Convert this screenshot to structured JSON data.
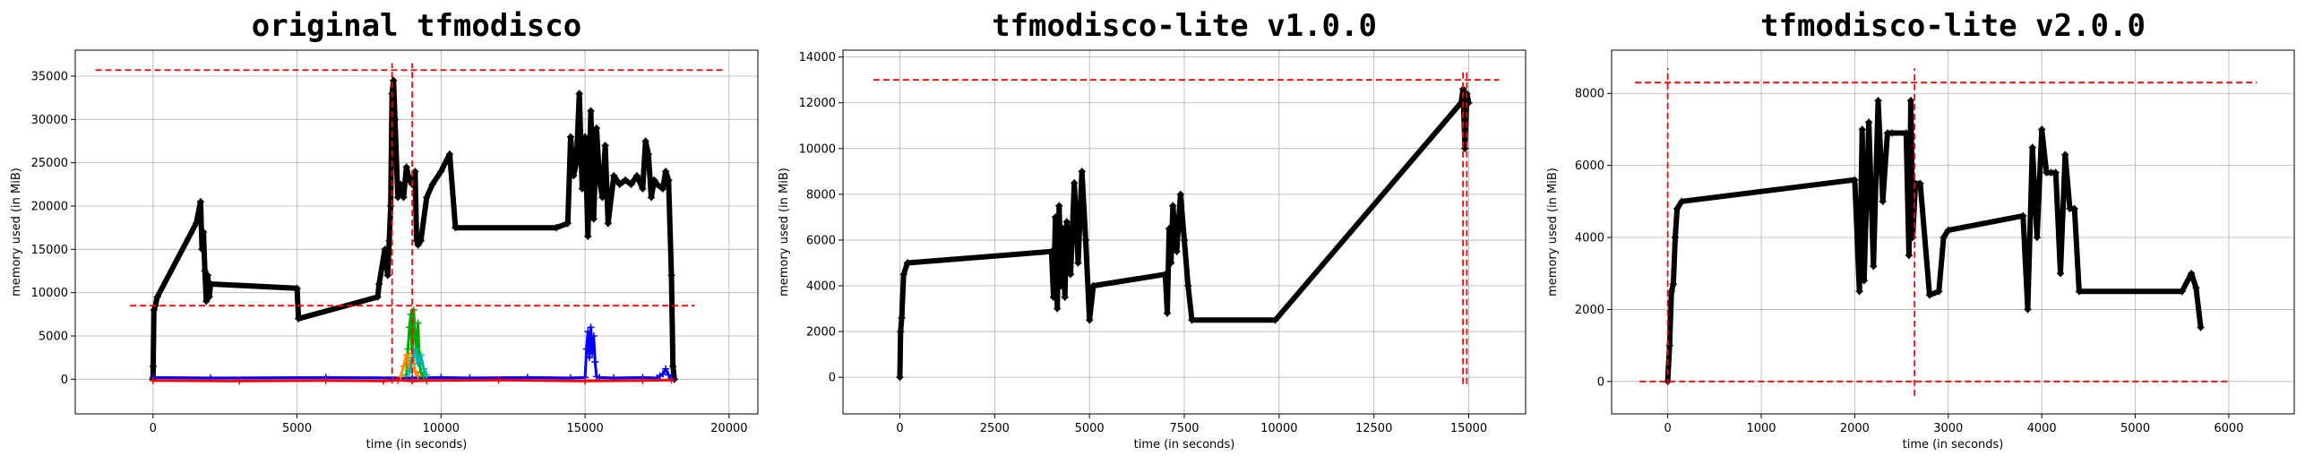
{
  "chart_data": [
    {
      "type": "line",
      "title": "original tfmodisco",
      "xlabel": "time (in seconds)",
      "ylabel": "memory used (in MiB)",
      "xlim": [
        -2700,
        21000
      ],
      "ylim": [
        -4000,
        38000
      ],
      "xticks": [
        0,
        5000,
        10000,
        15000,
        20000
      ],
      "yticks": [
        0,
        5000,
        10000,
        15000,
        20000,
        25000,
        30000,
        35000
      ],
      "grid": true,
      "series": [
        {
          "color": "#000000",
          "x": [
            0,
            5,
            30,
            80,
            150,
            1500,
            1650,
            1700,
            1750,
            1800,
            1850,
            1900,
            1950,
            2000,
            5000,
            5050,
            7800,
            7850,
            8050,
            8150,
            8200,
            8250,
            8300,
            8350,
            8400,
            8500,
            8600,
            8700,
            8800,
            8900,
            9000,
            9100,
            9150,
            9200,
            9300,
            9500,
            9700,
            10000,
            10300,
            10500,
            14000,
            14400,
            14500,
            14600,
            14700,
            14800,
            14900,
            15000,
            15100,
            15200,
            15300,
            15400,
            15500,
            15600,
            15700,
            15800,
            16000,
            16200,
            16400,
            16600,
            16800,
            17000,
            17100,
            17200,
            17300,
            17400,
            17500,
            17700,
            17800,
            17900,
            18000,
            18050,
            18100
          ],
          "y": [
            0,
            1500,
            8000,
            8500,
            9500,
            18000,
            20500,
            15000,
            17000,
            12500,
            9000,
            12000,
            9500,
            11000,
            10500,
            7000,
            9500,
            11000,
            15000,
            12000,
            16000,
            20000,
            33000,
            34500,
            30000,
            21000,
            22500,
            21000,
            24500,
            23000,
            22500,
            24000,
            16000,
            15500,
            16000,
            21000,
            22500,
            24000,
            26000,
            17500,
            17500,
            18000,
            28000,
            23500,
            25000,
            33000,
            22000,
            28000,
            16500,
            31000,
            18500,
            29000,
            23000,
            21000,
            27000,
            18000,
            23500,
            22500,
            23000,
            22500,
            23500,
            22000,
            27500,
            26000,
            21000,
            23000,
            22500,
            22000,
            24000,
            23000,
            12000,
            1500,
            0
          ]
        },
        {
          "color": "#0000ff",
          "x": [
            0,
            2000,
            6000,
            9000,
            10000,
            11000,
            13000,
            14500,
            15000,
            15050,
            15100,
            15150,
            15200,
            15250,
            15300,
            15350,
            15400,
            15500,
            16000,
            17000,
            17500,
            17600,
            17700,
            17800,
            17900,
            18000
          ],
          "y": [
            200,
            150,
            200,
            150,
            200,
            150,
            200,
            150,
            200,
            3500,
            5500,
            2500,
            6000,
            3000,
            5000,
            2000,
            300,
            200,
            150,
            200,
            150,
            400,
            600,
            1200,
            500,
            100
          ]
        },
        {
          "color": "#ff0000",
          "x": [
            0,
            3000,
            6000,
            8000,
            8500,
            9000,
            9500,
            12000,
            15000,
            17000,
            18000
          ],
          "y": [
            -150,
            -200,
            -150,
            -200,
            -100,
            -200,
            -150,
            -100,
            -200,
            -150,
            -100
          ]
        },
        {
          "color": "#00aa00",
          "x": [
            8800,
            8850,
            8900,
            8950,
            9000,
            9050,
            9100,
            9150,
            9200,
            9250,
            9300,
            9400
          ],
          "y": [
            500,
            3500,
            6000,
            7500,
            2500,
            8000,
            5000,
            3000,
            6500,
            2000,
            800,
            300
          ]
        },
        {
          "color": "#ff8c00",
          "x": [
            8600,
            8700,
            8800,
            8900,
            9000,
            9100,
            9200
          ],
          "y": [
            300,
            1500,
            2800,
            1200,
            3000,
            900,
            400
          ]
        },
        {
          "color": "#00b3b3",
          "x": [
            8900,
            9000,
            9100,
            9200,
            9300,
            9400,
            9500
          ],
          "y": [
            800,
            2200,
            3500,
            1800,
            2800,
            1200,
            500
          ]
        }
      ],
      "hlines": [
        {
          "y": 35700,
          "xmin": -2000,
          "xmax": 19800
        },
        {
          "y": 8500,
          "xmin": -800,
          "xmax": 18800
        }
      ],
      "vlines": [
        {
          "x": 8300,
          "ymin": -500,
          "ymax": 36500
        },
        {
          "x": 9000,
          "ymin": -500,
          "ymax": 36500
        }
      ]
    },
    {
      "type": "line",
      "title": "tfmodisco-lite v1.0.0",
      "xlabel": "time (in seconds)",
      "ylabel": "memory used (in MiB)",
      "xlim": [
        -1500,
        16500
      ],
      "ylim": [
        -1600,
        14300
      ],
      "xticks": [
        0,
        2500,
        5000,
        7500,
        10000,
        12500,
        15000
      ],
      "yticks": [
        0,
        2000,
        4000,
        6000,
        8000,
        10000,
        12000,
        14000
      ],
      "grid": true,
      "series": [
        {
          "color": "#000000",
          "x": [
            0,
            20,
            50,
            100,
            200,
            4000,
            4050,
            4100,
            4150,
            4200,
            4250,
            4300,
            4350,
            4400,
            4500,
            4600,
            4700,
            4800,
            4900,
            5000,
            5100,
            7000,
            7050,
            7100,
            7150,
            7200,
            7300,
            7400,
            7500,
            7600,
            7700,
            9900,
            14800,
            14850,
            14900,
            14950,
            15000
          ],
          "y": [
            0,
            2000,
            2600,
            4500,
            5000,
            5500,
            3500,
            7000,
            3000,
            7500,
            4000,
            6500,
            3500,
            6800,
            4500,
            8500,
            5000,
            9000,
            6000,
            2500,
            4000,
            4500,
            2800,
            6500,
            5000,
            7500,
            5500,
            8000,
            6000,
            4000,
            2500,
            2500,
            12000,
            12600,
            10000,
            12400,
            12000
          ]
        }
      ],
      "hlines": [
        {
          "y": 13000,
          "xmin": -700,
          "xmax": 15800
        }
      ],
      "vlines": [
        {
          "x": 14850,
          "ymin": -300,
          "ymax": 13500
        },
        {
          "x": 14950,
          "ymin": -300,
          "ymax": 13500
        }
      ]
    },
    {
      "type": "line",
      "title": "tfmodisco-lite v2.0.0",
      "xlabel": "time (in seconds)",
      "ylabel": "memory used (in MiB)",
      "xlim": [
        -600,
        6700
      ],
      "ylim": [
        -900,
        9200
      ],
      "xticks": [
        0,
        1000,
        2000,
        3000,
        4000,
        5000,
        6000
      ],
      "yticks": [
        0,
        2000,
        4000,
        6000,
        8000
      ],
      "grid": true,
      "series": [
        {
          "color": "#000000",
          "x": [
            0,
            20,
            40,
            60,
            80,
            100,
            150,
            2000,
            2050,
            2080,
            2100,
            2150,
            2200,
            2250,
            2300,
            2350,
            2400,
            2550,
            2580,
            2600,
            2620,
            2650,
            2700,
            2800,
            2900,
            2950,
            3000,
            3800,
            3850,
            3900,
            3950,
            4000,
            4050,
            4100,
            4150,
            4200,
            4250,
            4300,
            4350,
            4400,
            5500,
            5600,
            5650,
            5700
          ],
          "y": [
            0,
            1000,
            2500,
            2700,
            4000,
            4800,
            5000,
            5600,
            2500,
            7000,
            2800,
            7200,
            3200,
            7800,
            5000,
            6900,
            6900,
            6900,
            3500,
            7800,
            4000,
            5500,
            5500,
            2400,
            2500,
            4000,
            4200,
            4600,
            2000,
            6500,
            4000,
            7000,
            5800,
            5800,
            5800,
            3000,
            6300,
            4800,
            4800,
            2500,
            2500,
            3000,
            2600,
            1500
          ]
        }
      ],
      "hlines": [
        {
          "y": 8300,
          "xmin": -350,
          "xmax": 6300
        },
        {
          "y": 0,
          "xmin": -300,
          "xmax": 6000
        }
      ],
      "vlines": [
        {
          "x": 0,
          "ymin": -100,
          "ymax": 8700
        },
        {
          "x": 2640,
          "ymin": -400,
          "ymax": 8700
        }
      ]
    }
  ]
}
